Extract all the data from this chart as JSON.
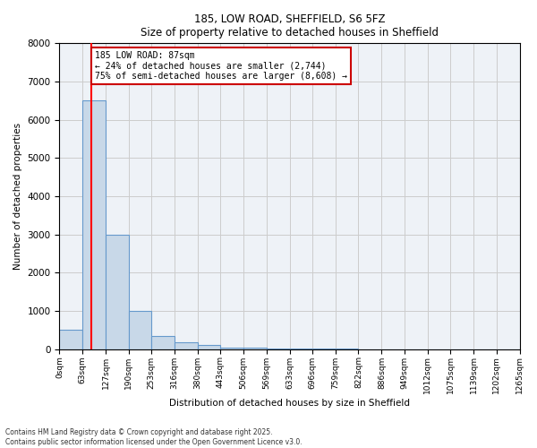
{
  "title_line1": "185, LOW ROAD, SHEFFIELD, S6 5FZ",
  "title_line2": "Size of property relative to detached houses in Sheffield",
  "xlabel": "Distribution of detached houses by size in Sheffield",
  "ylabel": "Number of detached properties",
  "bar_edges": [
    0,
    63,
    127,
    190,
    253,
    316,
    380,
    443,
    506,
    569,
    633,
    696,
    759,
    822,
    886,
    949,
    1012,
    1075,
    1139,
    1202,
    1265
  ],
  "bar_heights": [
    500,
    6500,
    3000,
    1000,
    350,
    175,
    100,
    50,
    30,
    15,
    10,
    7,
    5,
    4,
    3,
    2,
    2,
    1,
    1,
    1
  ],
  "bar_color": "#c8d8e8",
  "bar_edge_color": "#6699cc",
  "grid_color": "#cccccc",
  "background_color": "#eef2f7",
  "red_line_x": 87,
  "annotation_text": "185 LOW ROAD: 87sqm\n← 24% of detached houses are smaller (2,744)\n75% of semi-detached houses are larger (8,608) →",
  "annotation_box_color": "#ffffff",
  "annotation_box_edge": "#cc0000",
  "ylim": [
    0,
    8000
  ],
  "yticks": [
    0,
    1000,
    2000,
    3000,
    4000,
    5000,
    6000,
    7000,
    8000
  ],
  "xlim": [
    0,
    1265
  ],
  "footnote_line1": "Contains HM Land Registry data © Crown copyright and database right 2025.",
  "footnote_line2": "Contains public sector information licensed under the Open Government Licence v3.0."
}
